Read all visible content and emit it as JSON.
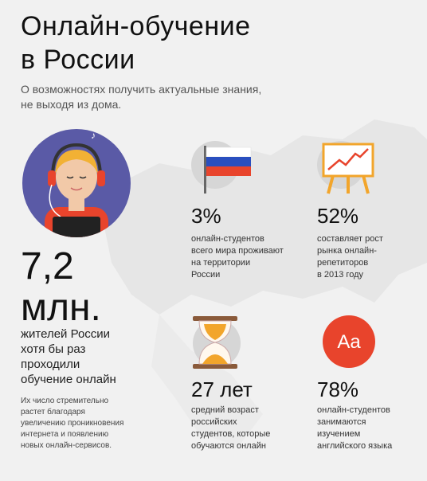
{
  "title": "Онлайн-обучение\nв России",
  "subtitle": "О возможностях получить актуальные знания,\nне выходя из дома.",
  "main_stat": {
    "value": "7,2",
    "unit": "млн.",
    "description": "жителей России\nхотя бы раз\nпроходили\nобучение онлайн",
    "note": "Их число стремительно\nрастет благодаря\nувеличению проникновения\nинтернета и появлению\nновых онлайн-сервисов."
  },
  "stats": [
    {
      "value": "3%",
      "description": "онлайн-студентов\nвсего мира проживают\nна территории\nРоссии",
      "icon": "russia-flag-icon"
    },
    {
      "value": "52%",
      "description": "составляет рост\nрынка онлайн-\nрепетиторов\nв 2013 году",
      "icon": "growth-chart-icon"
    },
    {
      "value": "27 лет",
      "description": "средний возраст\nроссийских\nстудентов, которые\nобучаются онлайн",
      "icon": "hourglass-icon"
    },
    {
      "value": "78%",
      "description": "онлайн-студентов\nзанимаются\nизучением\nанглийского языка",
      "icon": "aa-letters-icon",
      "icon_text": "Aa"
    }
  ],
  "colors": {
    "accent": "#e8442c",
    "avatar_bg": "#5a5aa6",
    "map": "#e4e4e4"
  }
}
